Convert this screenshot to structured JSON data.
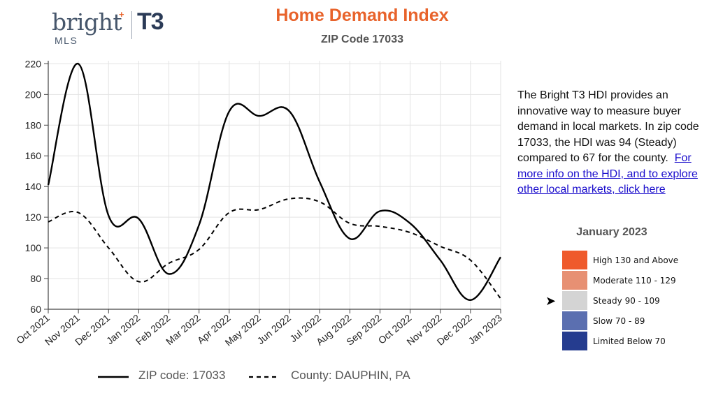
{
  "logo": {
    "bright": "bright",
    "mls": "MLS",
    "t3": "T3"
  },
  "title": "Home Demand Index",
  "subtitle": "ZIP Code 17033",
  "description": {
    "text": "The Bright T3 HDI provides an innovative way to measure buyer demand in local markets. In zip code 17033, the HDI was 94 (Steady) compared to 67 for the county.",
    "link": "For more info on the HDI, and to explore other local markets, click here"
  },
  "scale": {
    "title": "January 2023",
    "bands": [
      {
        "label": "High 130 and Above",
        "color": "#ef5a2c"
      },
      {
        "label": "Moderate 110 - 129",
        "color": "#e79073"
      },
      {
        "label": "Steady 90 - 109",
        "color": "#d4d4d4"
      },
      {
        "label": "Slow 70 - 89",
        "color": "#5b6fb0"
      },
      {
        "label": "Limited Below 70",
        "color": "#253c8f"
      }
    ],
    "current_band": "Steady 90 - 109"
  },
  "legend": {
    "zip_label": "ZIP code: 17033",
    "county_label": "County: DAUPHIN, PA"
  },
  "chart_data": {
    "type": "line",
    "title": "Home Demand Index",
    "subtitle": "ZIP Code 17033",
    "categories": [
      "Oct 2021",
      "Nov 2021",
      "Dec 2021",
      "Jan 2022",
      "Feb 2022",
      "Mar 2022",
      "Apr 2022",
      "May 2022",
      "Jun 2022",
      "Jul 2022",
      "Aug 2022",
      "Sep 2022",
      "Oct 2022",
      "Nov 2022",
      "Dec 2022",
      "Jan 2023"
    ],
    "series": [
      {
        "name": "ZIP code: 17033",
        "style": "solid",
        "values": [
          141,
          220,
          121,
          119,
          83,
          115,
          189,
          186,
          189,
          143,
          106,
          124,
          116,
          92,
          66,
          94
        ]
      },
      {
        "name": "County: DAUPHIN, PA",
        "style": "dashed",
        "values": [
          117,
          123,
          100,
          78,
          90,
          99,
          123,
          125,
          132,
          130,
          116,
          114,
          110,
          101,
          92,
          67
        ]
      }
    ],
    "yticks": [
      60,
      80,
      100,
      120,
      140,
      160,
      180,
      200,
      220
    ],
    "ylim": [
      60,
      222
    ],
    "grid": true,
    "legend_position": "bottom"
  }
}
